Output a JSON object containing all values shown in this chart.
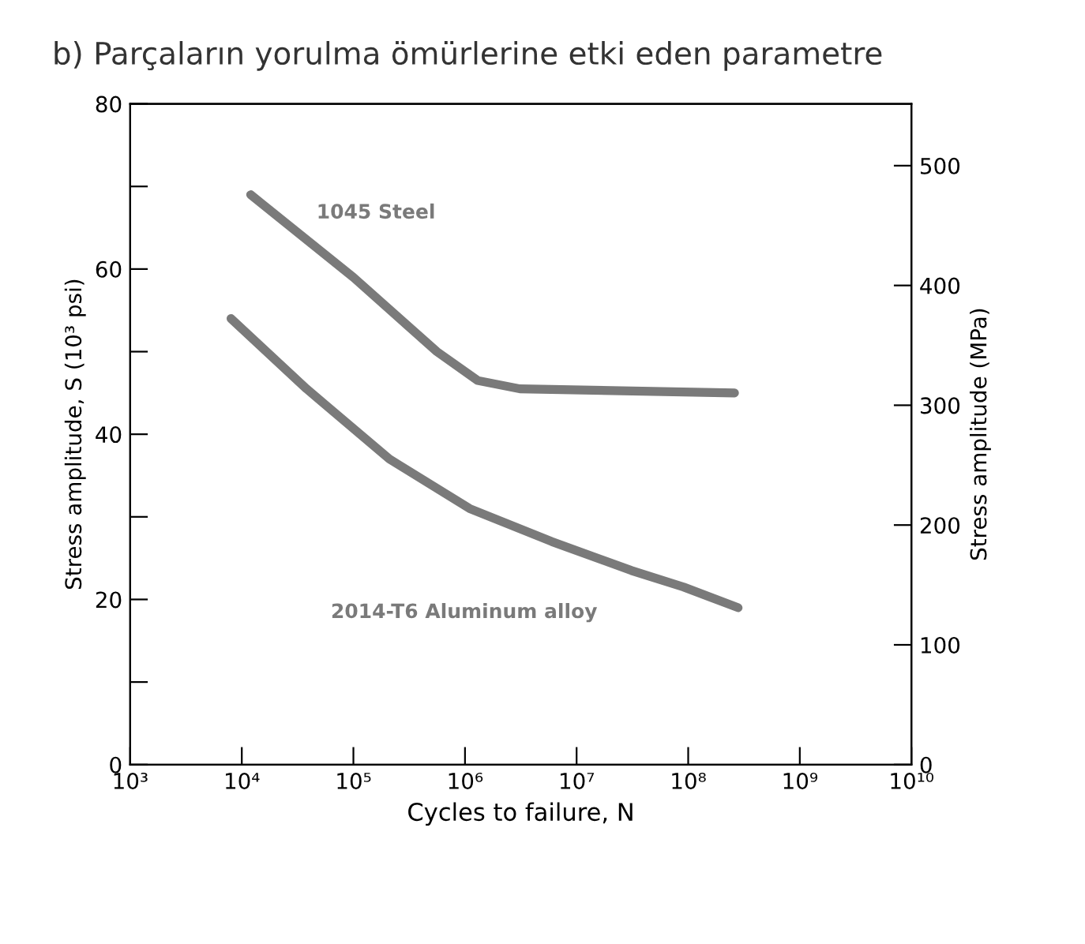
{
  "chart_data": {
    "type": "line",
    "title": "b) Parçaların yorulma ömürlerine etki eden parametre",
    "xlabel": "Cycles to failure, N",
    "ylabel": "Stress amplitude, S (10³ psi)",
    "y2label": "Stress amplitude (MPa)",
    "log": "x",
    "xlim": [
      1000,
      10000000000
    ],
    "xticks": [
      {
        "value": 1000,
        "label": "10³"
      },
      {
        "value": 10000,
        "label": "10⁴"
      },
      {
        "value": 100000,
        "label": "10⁵"
      },
      {
        "value": 1000000,
        "label": "10⁶"
      },
      {
        "value": 10000000,
        "label": "10⁷"
      },
      {
        "value": 100000000,
        "label": "10⁸"
      },
      {
        "value": 1000000000,
        "label": "10⁹"
      },
      {
        "value": 10000000000,
        "label": "10¹⁰"
      }
    ],
    "ylim": [
      0,
      80
    ],
    "yticks": [
      0,
      {
        "value": 10,
        "label": null
      },
      20,
      {
        "value": 30,
        "label": null
      },
      40,
      {
        "value": 50,
        "label": null
      },
      60,
      {
        "value": 70,
        "label": null
      },
      80
    ],
    "y2lim": [
      0,
      551.6
    ],
    "y2ticks": [
      0,
      100,
      200,
      300,
      400,
      500
    ],
    "grid": false,
    "legend": false,
    "series": [
      {
        "name": "1045 Steel",
        "color": "#7a7a7a",
        "x": [
          12000,
          100000,
          560000,
          1300000,
          3100000,
          260000000
        ],
        "values": [
          69,
          59,
          50,
          46.5,
          45.5,
          45
        ]
      },
      {
        "name": "2014-T6 Aluminum alloy",
        "color": "#7a7a7a",
        "x": [
          8000,
          38000,
          210000,
          1100000,
          6000000,
          31000000,
          91000000,
          280000000
        ],
        "values": [
          54,
          45.5,
          37,
          31,
          27,
          23.5,
          21.5,
          19
        ]
      }
    ]
  }
}
